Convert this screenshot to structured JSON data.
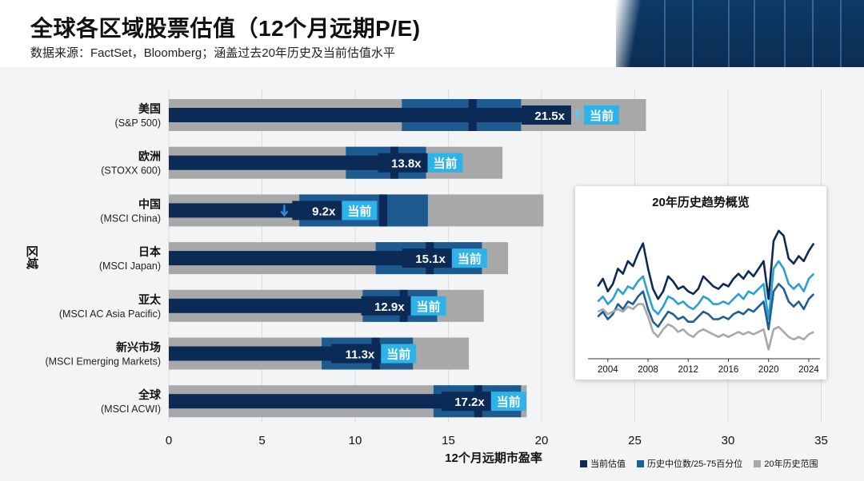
{
  "header": {
    "title": "全球各区域股票估值（12个月远期P/E)",
    "subtitle": "数据来源：FactSet，Bloomberg；涵盖过去20年历史及当前估值水平"
  },
  "chart_data": [
    {
      "type": "bar",
      "title": "全球各区域股票估值（12个月远期P/E)",
      "xlabel": "12个月远期市盈率",
      "ylabel": "区域",
      "xlim": [
        0,
        35
      ],
      "xticks": [
        0,
        5,
        10,
        15,
        20,
        25,
        30,
        35
      ],
      "current_tag": "当前",
      "regions": [
        {
          "name": "美国",
          "index": "(S&P 500)",
          "current": 21.5,
          "current_label": "21.5x",
          "range_min": 0,
          "range_max": 25.6,
          "iqr": [
            12.5,
            18.9
          ],
          "median": 16.3,
          "arrow": "up"
        },
        {
          "name": "欧洲",
          "index": "(STOXX 600)",
          "current": 13.8,
          "current_label": "13.8x",
          "range_min": 0,
          "range_max": 17.9,
          "iqr": [
            9.5,
            13.8
          ],
          "median": 12.1,
          "arrow": ""
        },
        {
          "name": "中国",
          "index": "(MSCI China)",
          "current": 9.2,
          "current_label": "9.2x",
          "range_min": 0,
          "range_max": 20.1,
          "iqr": [
            7.0,
            13.9
          ],
          "median": 11.5,
          "arrow": "down"
        },
        {
          "name": "日本",
          "index": "(MSCI Japan)",
          "current": 15.1,
          "current_label": "15.1x",
          "range_min": 0,
          "range_max": 18.2,
          "iqr": [
            11.1,
            16.8
          ],
          "median": 14.0,
          "arrow": ""
        },
        {
          "name": "亚太",
          "index": "(MSCI AC Asia Pacific)",
          "current": 12.9,
          "current_label": "12.9x",
          "range_min": 0,
          "range_max": 16.9,
          "iqr": [
            10.4,
            14.4
          ],
          "median": 12.6,
          "arrow": ""
        },
        {
          "name": "新兴市场",
          "index": "(MSCI Emerging Markets)",
          "current": 11.3,
          "current_label": "11.3x",
          "range_min": 0,
          "range_max": 16.1,
          "iqr": [
            8.2,
            13.1
          ],
          "median": 11.1,
          "arrow": ""
        },
        {
          "name": "全球",
          "index": "(MSCI ACWI)",
          "current": 17.2,
          "current_label": "17.2x",
          "range_min": 0,
          "range_max": 19.2,
          "iqr": [
            14.2,
            18.9
          ],
          "median": 16.6,
          "arrow": ""
        }
      ]
    },
    {
      "type": "line",
      "title": "20年历史趋势概览",
      "x_ticks": [
        "2004",
        "2008",
        "2012",
        "2016",
        "2020",
        "2024"
      ],
      "x": [
        2003,
        2003.5,
        2004,
        2004.5,
        2005,
        2005.5,
        2006,
        2006.5,
        2007,
        2007.5,
        2008,
        2008.5,
        2009,
        2009.5,
        2010,
        2010.5,
        2011,
        2011.5,
        2012,
        2012.5,
        2013,
        2013.5,
        2014,
        2014.5,
        2015,
        2015.5,
        2016,
        2016.5,
        2017,
        2017.5,
        2018,
        2018.5,
        2019,
        2019.5,
        2020,
        2020.5,
        2021,
        2021.5,
        2022,
        2022.5,
        2023,
        2023.5,
        2024,
        2024.5
      ],
      "series": [
        {
          "name": "当前估值",
          "color": "#0b2a55",
          "values": [
            63,
            66,
            61,
            64,
            70,
            68,
            73,
            71,
            76,
            80,
            70,
            62,
            58,
            61,
            67,
            65,
            62,
            63,
            61,
            60,
            62,
            67,
            65,
            63,
            62,
            64,
            63,
            66,
            68,
            66,
            69,
            67,
            70,
            73,
            58,
            81,
            85,
            83,
            74,
            72,
            75,
            73,
            77,
            80
          ]
        },
        {
          "name": "历史中位数/25-75百分位",
          "color": "#2a9fd8",
          "values": [
            57,
            59,
            56,
            58,
            62,
            60,
            63,
            62,
            65,
            67,
            60,
            54,
            52,
            55,
            59,
            58,
            56,
            57,
            55,
            54,
            56,
            59,
            58,
            56,
            56,
            57,
            56,
            58,
            60,
            58,
            61,
            60,
            62,
            64,
            50,
            70,
            73,
            70,
            64,
            62,
            64,
            61,
            66,
            68
          ]
        },
        {
          "name": "历史中位数/25-75百分位",
          "color": "#1f5f95",
          "values": [
            51,
            53,
            50,
            52,
            56,
            54,
            57,
            56,
            59,
            61,
            54,
            49,
            47,
            50,
            53,
            52,
            50,
            51,
            49,
            49,
            51,
            53,
            52,
            50,
            50,
            51,
            50,
            52,
            53,
            52,
            54,
            53,
            55,
            57,
            46,
            61,
            64,
            62,
            57,
            55,
            57,
            54,
            58,
            60
          ]
        },
        {
          "name": "20年历史范围",
          "color": "#a8a8a8",
          "values": [
            53,
            54,
            52,
            53,
            54,
            53,
            55,
            54,
            56,
            56,
            51,
            45,
            43,
            46,
            48,
            47,
            45,
            46,
            44,
            43,
            45,
            46,
            45,
            44,
            43,
            44,
            43,
            44,
            45,
            44,
            45,
            44,
            45,
            46,
            38,
            46,
            47,
            45,
            43,
            42,
            43,
            42,
            44,
            45
          ]
        }
      ]
    }
  ],
  "legend": {
    "items": [
      {
        "label": "当前估值",
        "color": "#0b2a55"
      },
      {
        "label": "历史中位数/25-75百分位",
        "color": "#1f5f95"
      },
      {
        "label": "20年历史范围",
        "color": "#a8a8a8"
      }
    ]
  },
  "colors": {
    "dark_navy": "#0b2a55",
    "mid_blue": "#1c5a90",
    "accent_cyan": "#2eb3e8",
    "range_gray": "#a8a8a8",
    "up_arrow": "#5ec6f0",
    "down_arrow": "#2e8fd6"
  }
}
